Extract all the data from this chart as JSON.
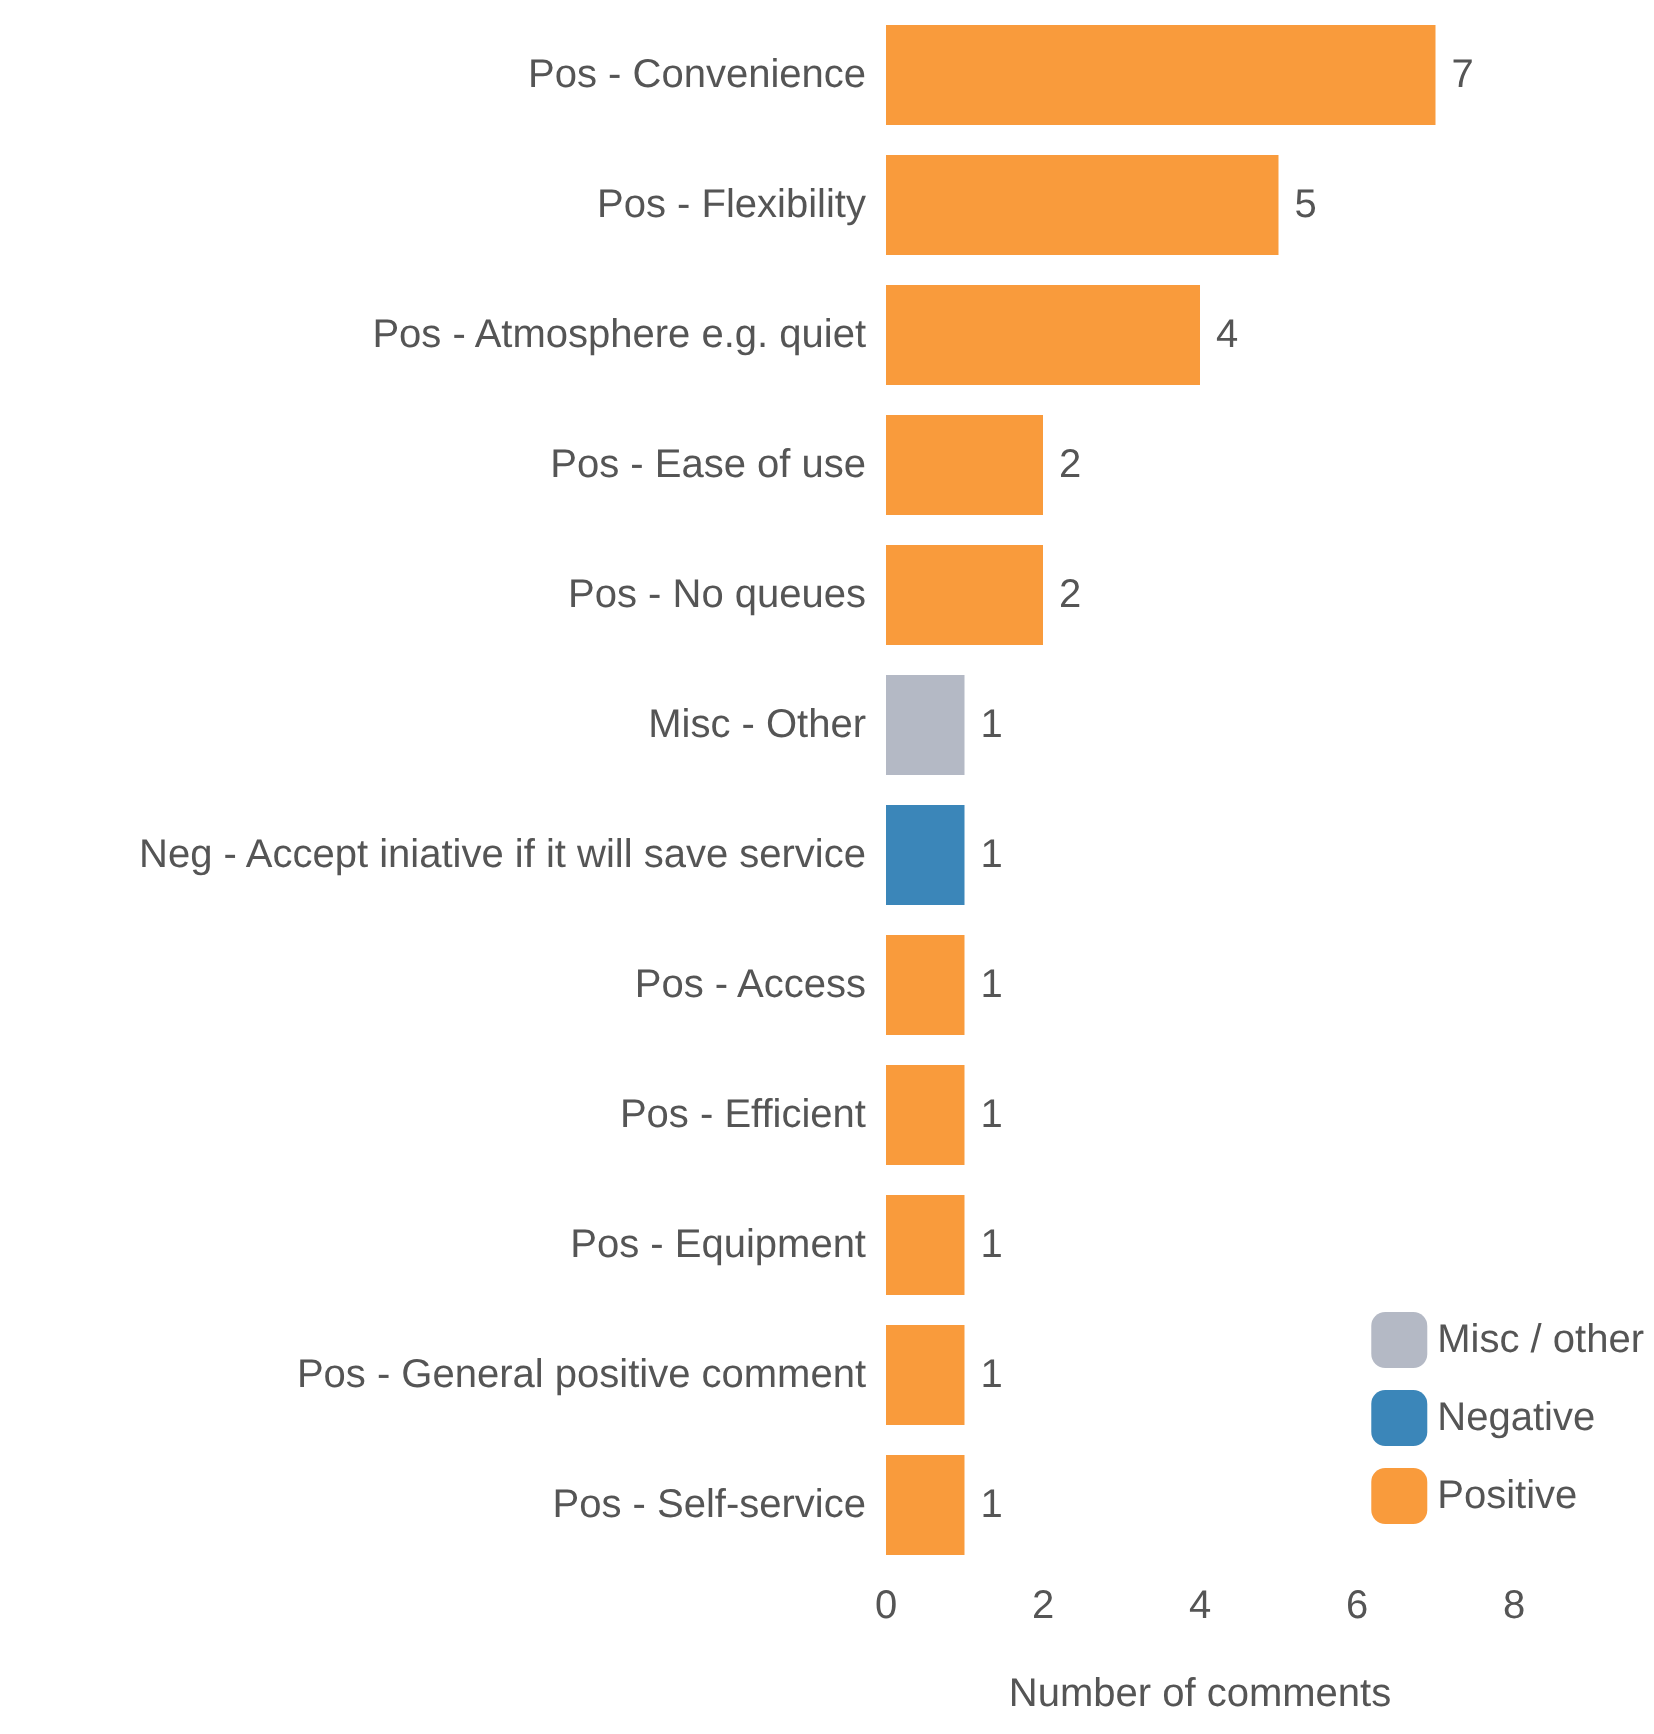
{
  "chart_data": {
    "type": "bar",
    "orientation": "horizontal",
    "xlabel": "Number of comments",
    "categories": [
      "Pos - Convenience",
      "Pos - Flexibility",
      "Pos - Atmosphere e.g. quiet",
      "Pos - Ease of use",
      "Pos - No queues",
      "Misc - Other",
      "Neg - Accept iniative if it will save service",
      "Pos - Access",
      "Pos - Efficient",
      "Pos - Equipment",
      "Pos - General positive comment",
      "Pos - Self-service"
    ],
    "series": [
      {
        "name": "Misc / other",
        "color": "#b4b9c5",
        "values": [
          null,
          null,
          null,
          null,
          null,
          1,
          null,
          null,
          null,
          null,
          null,
          null
        ]
      },
      {
        "name": "Negative",
        "color": "#3b86b9",
        "values": [
          null,
          null,
          null,
          null,
          null,
          null,
          1,
          null,
          null,
          null,
          null,
          null
        ]
      },
      {
        "name": "Positive",
        "color": "#f99b3c",
        "values": [
          7,
          5,
          4,
          2,
          2,
          null,
          null,
          1,
          1,
          1,
          1,
          1
        ]
      }
    ],
    "xlim": [
      0,
      8
    ],
    "xticks": [
      0,
      2,
      4,
      6,
      8
    ],
    "grid": false,
    "legend": "bottom right",
    "data_labels": true
  }
}
